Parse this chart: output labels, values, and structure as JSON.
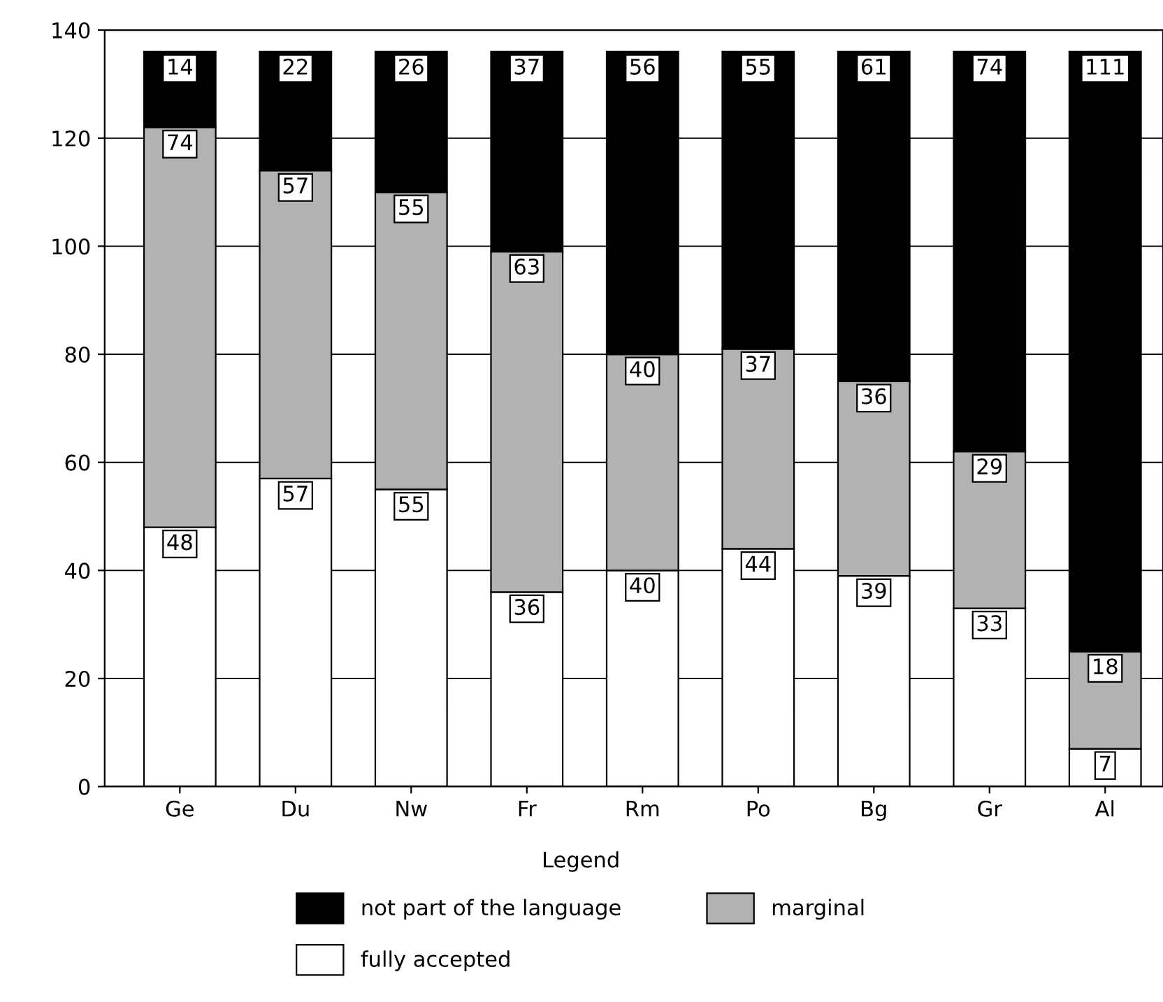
{
  "chart_data": {
    "type": "bar",
    "stacked": true,
    "categories": [
      "Ge",
      "Du",
      "Nw",
      "Fr",
      "Rm",
      "Po",
      "Bg",
      "Gr",
      "Al"
    ],
    "series": [
      {
        "name": "fully accepted",
        "color": "#ffffff",
        "values": [
          48,
          57,
          55,
          36,
          40,
          44,
          39,
          33,
          7
        ]
      },
      {
        "name": "marginal",
        "color": "#b2b2b2",
        "values": [
          74,
          57,
          55,
          63,
          40,
          37,
          36,
          29,
          18
        ]
      },
      {
        "name": "not part of the language",
        "color": "#000000",
        "values": [
          14,
          22,
          26,
          37,
          56,
          55,
          61,
          74,
          111
        ]
      }
    ],
    "ylim": [
      0,
      140
    ],
    "yticks": [
      0,
      20,
      40,
      60,
      80,
      100,
      120,
      140
    ],
    "grid": "y",
    "legend": "bottom",
    "legend_title": "Legend",
    "data_labels": true
  }
}
